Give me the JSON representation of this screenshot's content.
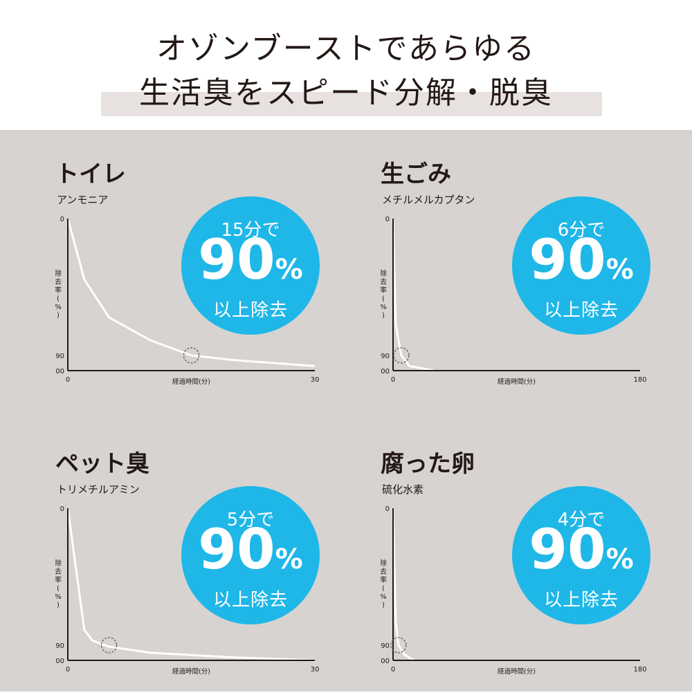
{
  "header": {
    "line1": "オゾンブーストであらゆる",
    "line2": "生活臭をスピード分解・脱臭"
  },
  "colors": {
    "accent": "#1fb7e8",
    "background": "#d6d3d1",
    "band": "#e7e2e0",
    "curve": "#ffffff",
    "text": "#231815"
  },
  "chart_data": [
    {
      "type": "line",
      "title": "トイレ",
      "subtitle": "アンモニア",
      "xlabel": "経過時間(分)",
      "ylabel": "除去率(%)",
      "xlim": [
        0,
        30
      ],
      "ylim": [
        0,
        100
      ],
      "y_inverted": true,
      "xticks": [
        "0",
        "30"
      ],
      "yticks": [
        "0",
        "90",
        "100"
      ],
      "x": [
        0,
        2,
        5,
        10,
        15,
        20,
        25,
        30
      ],
      "y": [
        0,
        40,
        65,
        80,
        90,
        93,
        95,
        97
      ],
      "marker": {
        "x": 15,
        "y": 90
      },
      "badge": {
        "top": "15分で",
        "big": "90",
        "pct": "%",
        "bottom": "以上除去"
      }
    },
    {
      "type": "line",
      "title": "生ごみ",
      "subtitle": "メチルメルカプタン",
      "xlabel": "経過時間(分)",
      "ylabel": "除去率(%)",
      "xlim": [
        0,
        180
      ],
      "ylim": [
        0,
        100
      ],
      "y_inverted": true,
      "xticks": [
        "0",
        "180"
      ],
      "yticks": [
        "0",
        "90",
        "100"
      ],
      "x": [
        0,
        2,
        6,
        12,
        30
      ],
      "y": [
        0,
        70,
        90,
        97,
        100
      ],
      "marker": {
        "x": 6,
        "y": 90
      },
      "badge": {
        "top": "6分で",
        "big": "90",
        "pct": "%",
        "bottom": "以上除去"
      }
    },
    {
      "type": "line",
      "title": "ペット臭",
      "subtitle": "トリメチルアミン",
      "xlabel": "経過時間(分)",
      "ylabel": "除去率(%)",
      "xlim": [
        0,
        30
      ],
      "ylim": [
        0,
        100
      ],
      "y_inverted": true,
      "xticks": [
        "0",
        "30"
      ],
      "yticks": [
        "0",
        "90",
        "100"
      ],
      "x": [
        0,
        2,
        3,
        5,
        10,
        20,
        30
      ],
      "y": [
        0,
        80,
        87,
        91,
        95,
        98,
        100
      ],
      "marker": {
        "x": 5,
        "y": 90
      },
      "badge": {
        "top": "5分で",
        "big": "90",
        "pct": "%",
        "bottom": "以上除去"
      }
    },
    {
      "type": "line",
      "title": "腐った卵",
      "subtitle": "硫化水素",
      "xlabel": "経過時間(分)",
      "ylabel": "除去率(%)",
      "xlim": [
        0,
        180
      ],
      "ylim": [
        0,
        100
      ],
      "y_inverted": true,
      "xticks": [
        "0",
        "180"
      ],
      "yticks": [
        "0",
        "90",
        "100"
      ],
      "x": [
        0,
        2,
        4,
        8,
        15
      ],
      "y": [
        0,
        75,
        90,
        96,
        100
      ],
      "marker": {
        "x": 4,
        "y": 90
      },
      "badge": {
        "top": "4分で",
        "big": "90",
        "pct": "%",
        "bottom": "以上除去"
      }
    }
  ]
}
